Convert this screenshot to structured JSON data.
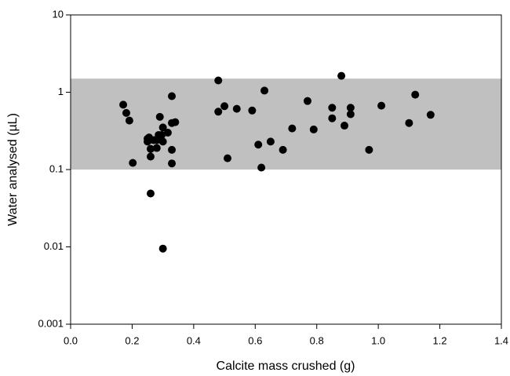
{
  "chart_data": {
    "type": "scatter",
    "xlabel": "Calcite mass crushed (g)",
    "ylabel": "Water analysed (µL)",
    "xlim": [
      0,
      1.4
    ],
    "xticks": [
      {
        "value": 0,
        "label": "0.0"
      },
      0.2,
      0.4,
      0.6,
      0.8,
      {
        "value": 1,
        "label": "1.0"
      },
      1.2,
      1.4
    ],
    "ylim": [
      0.001,
      10
    ],
    "yticks": [
      0.001,
      0.01,
      0.1,
      1,
      10
    ],
    "ylog": true,
    "grid": false,
    "color": "#000000",
    "band": {
      "range": [
        0.1,
        1.5
      ],
      "color": "#c0c0c0"
    },
    "x": [
      0.171,
      0.181,
      0.191,
      0.202,
      0.25,
      0.25,
      0.255,
      0.26,
      0.26,
      0.26,
      0.27,
      0.28,
      0.28,
      0.286,
      0.29,
      0.296,
      0.3,
      0.3,
      0.3,
      0.316,
      0.329,
      0.329,
      0.329,
      0.329,
      0.34,
      0.48,
      0.48,
      0.5,
      0.51,
      0.54,
      0.59,
      0.61,
      0.62,
      0.63,
      0.65,
      0.69,
      0.72,
      0.77,
      0.79,
      0.85,
      0.85,
      0.88,
      0.89,
      0.91,
      0.91,
      0.97,
      1.01,
      1.1,
      1.12,
      1.17
    ],
    "values": [
      0.69,
      0.54,
      0.43,
      0.122,
      0.25,
      0.23,
      0.26,
      0.147,
      0.185,
      0.049,
      0.24,
      0.19,
      0.24,
      0.28,
      0.48,
      0.28,
      0.35,
      0.0095,
      0.23,
      0.3,
      0.89,
      0.4,
      0.18,
      0.12,
      0.41,
      1.42,
      0.56,
      0.66,
      0.14,
      0.61,
      0.58,
      0.21,
      0.106,
      1.05,
      0.23,
      0.18,
      0.34,
      0.77,
      0.33,
      0.63,
      0.46,
      1.63,
      0.37,
      0.52,
      0.63,
      0.18,
      0.67,
      0.4,
      0.93,
      0.51
    ]
  }
}
